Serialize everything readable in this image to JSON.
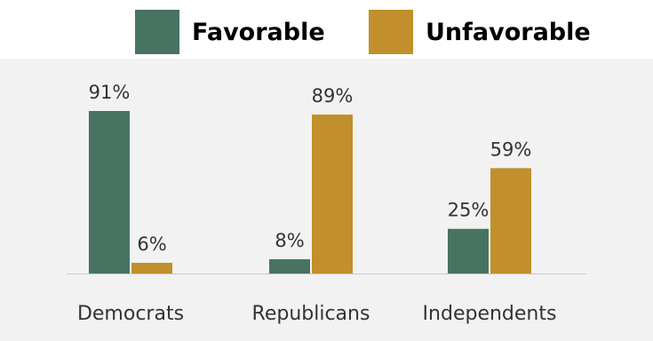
{
  "colors": {
    "favorable": "#467461",
    "unfavorable": "#c18f2c",
    "axis": "#c8c8c8",
    "label_text": "#333333"
  },
  "legend": {
    "favorable_label": "Favorable",
    "unfavorable_label": "Unfavorable"
  },
  "chart_data": {
    "type": "bar",
    "categories": [
      "Democrats",
      "Republicans",
      "Independents"
    ],
    "series": [
      {
        "name": "Favorable",
        "values": [
          91,
          8,
          25
        ],
        "labels": [
          "91%",
          "8%",
          "25%"
        ]
      },
      {
        "name": "Unfavorable",
        "values": [
          6,
          89,
          59
        ],
        "labels": [
          "6%",
          "89%",
          "59%"
        ]
      }
    ],
    "ylim": [
      0,
      100
    ],
    "grid": false,
    "legend_position": "top-right",
    "title": "",
    "xlabel": "",
    "ylabel": ""
  }
}
